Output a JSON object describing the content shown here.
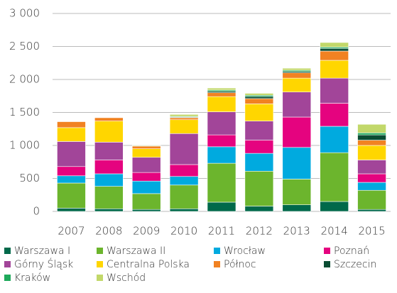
{
  "chart_data": {
    "type": "bar",
    "stacked": true,
    "categories": [
      "2007",
      "2008",
      "2009",
      "2010",
      "2011",
      "2012",
      "2013",
      "2014",
      "2015"
    ],
    "series": [
      {
        "name": "Warszawa I",
        "color": "#00694a",
        "values": [
          50,
          40,
          30,
          40,
          140,
          80,
          100,
          150,
          30
        ]
      },
      {
        "name": "Warszawa II",
        "color": "#6cb52d",
        "values": [
          380,
          340,
          240,
          360,
          590,
          530,
          390,
          740,
          290
        ]
      },
      {
        "name": "Wrocław",
        "color": "#00aadf",
        "values": [
          110,
          190,
          190,
          130,
          250,
          270,
          480,
          400,
          120
        ]
      },
      {
        "name": "Poznań",
        "color": "#e5037f",
        "values": [
          140,
          210,
          130,
          180,
          180,
          200,
          460,
          350,
          130
        ]
      },
      {
        "name": "Górny Śląsk",
        "color": "#a24599",
        "values": [
          380,
          270,
          230,
          470,
          350,
          290,
          380,
          380,
          210
        ]
      },
      {
        "name": "Centralna Polska",
        "color": "#ffd600",
        "values": [
          210,
          320,
          130,
          210,
          230,
          260,
          210,
          270,
          220
        ]
      },
      {
        "name": "Północ",
        "color": "#f18222",
        "values": [
          90,
          50,
          40,
          30,
          60,
          80,
          80,
          140,
          80
        ]
      },
      {
        "name": "Szczecin",
        "color": "#0a4d33",
        "values": [
          0,
          0,
          0,
          10,
          20,
          30,
          20,
          40,
          80
        ]
      },
      {
        "name": "Kraków",
        "color": "#1ea95b",
        "values": [
          0,
          0,
          0,
          10,
          20,
          20,
          20,
          20,
          30
        ]
      },
      {
        "name": "Wschód",
        "color": "#c2d86a",
        "values": [
          0,
          0,
          10,
          30,
          30,
          30,
          30,
          70,
          130
        ]
      }
    ],
    "ylim": [
      0,
      3000
    ],
    "yticks": [
      0,
      500,
      {
        "value": 1000,
        "label": "1 000"
      },
      {
        "value": 1500,
        "label": "1 500"
      },
      {
        "value": 2000,
        "label": "2 000"
      },
      {
        "value": 2500,
        "label": "2 500"
      },
      {
        "value": 3000,
        "label": "3 000"
      }
    ],
    "grid": true
  }
}
